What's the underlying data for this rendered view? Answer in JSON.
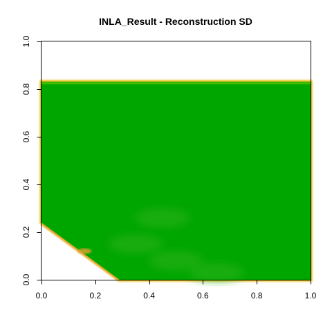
{
  "chart_data": {
    "type": "heatmap",
    "title": "INLA_Result  - Reconstruction SD",
    "xlabel": "",
    "ylabel": "",
    "xlim": [
      0,
      1
    ],
    "ylim": [
      0,
      1
    ],
    "x_ticks": [
      0.0,
      0.2,
      0.4,
      0.6,
      0.8,
      1.0
    ],
    "y_ticks": [
      0.0,
      0.2,
      0.4,
      0.6,
      0.8,
      1.0
    ],
    "x_tick_labels": [
      "0.0",
      "0.2",
      "0.4",
      "0.6",
      "0.8",
      "1.0"
    ],
    "y_tick_labels": [
      "0.0",
      "0.2",
      "0.4",
      "0.6",
      "0.8",
      "1.0"
    ],
    "grid": false,
    "legend": "none",
    "field": {
      "domain_top_y": 0.83,
      "lower_left_boundary": [
        [
          0.0,
          0.24
        ],
        [
          0.29,
          0.0
        ]
      ],
      "fill_color": "#00a600",
      "edge_colors": [
        "#e6b800",
        "#e8a030",
        "#63c600"
      ],
      "lighter_green_patches": [
        [
          0.45,
          0.26
        ],
        [
          0.35,
          0.15
        ],
        [
          0.5,
          0.08
        ],
        [
          0.65,
          0.03
        ]
      ]
    }
  }
}
